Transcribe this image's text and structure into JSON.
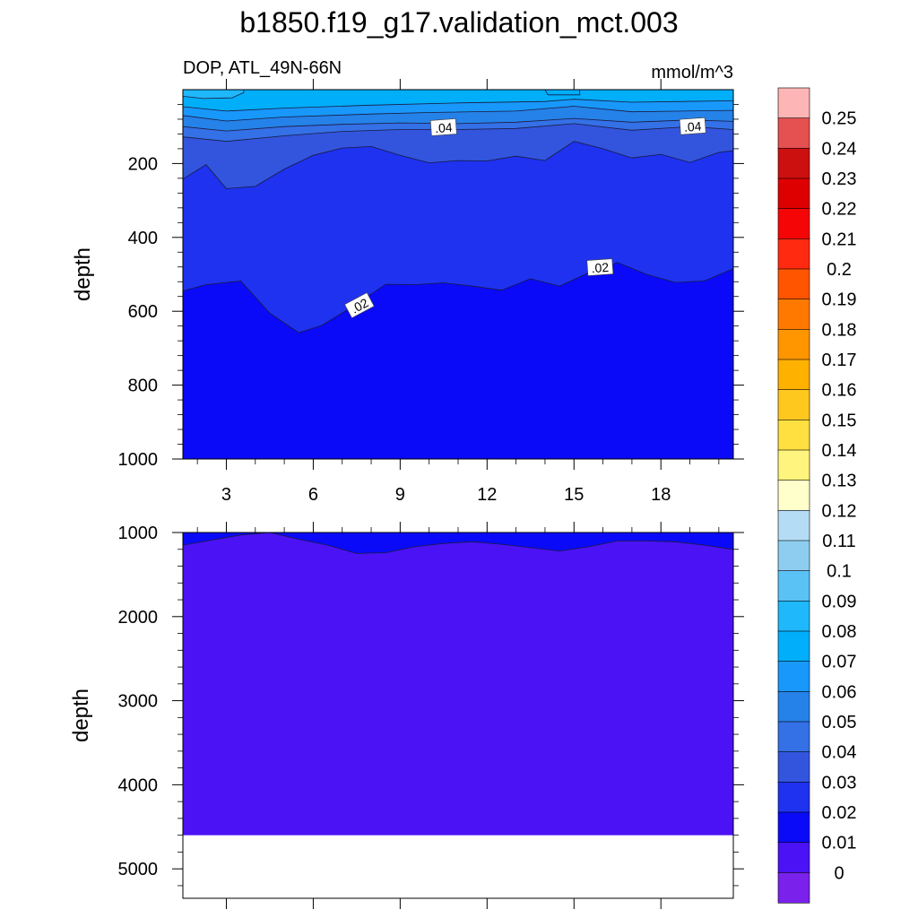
{
  "title": "b1850.f19_g17.validation_mct.003",
  "chart_data": {
    "type": "contour",
    "variable_label": "DOP, ATL_49N-66N",
    "units": "mmol/m^3",
    "x_ticks": [
      "3",
      "6",
      "9",
      "12",
      "15",
      "18"
    ],
    "x_tick_values": [
      3,
      6,
      9,
      12,
      15,
      18
    ],
    "xlim": [
      1.5,
      20.5
    ],
    "upper_panel": {
      "ylabel": "depth",
      "ylim": [
        0,
        1000
      ],
      "y_ticks": [
        "200",
        "400",
        "600",
        "800",
        "1000"
      ],
      "y_tick_values": [
        200,
        400,
        600,
        800,
        1000
      ],
      "contour_labels": [
        {
          "text": ".04",
          "x": 10.5,
          "depth": 103
        },
        {
          "text": ".04",
          "x": 19.1,
          "depth": 100
        },
        {
          "text": ".02",
          "x": 7.6,
          "depth": 585
        },
        {
          "text": ".02",
          "x": 15.9,
          "depth": 482
        }
      ]
    },
    "lower_panel": {
      "ylabel": "depth",
      "ylim": [
        1000,
        5350
      ],
      "y_ticks": [
        "1000",
        "2000",
        "3000",
        "4000",
        "5000"
      ],
      "y_tick_values": [
        1000,
        2000,
        3000,
        4000,
        5000
      ],
      "data_bottom_depth": 4600
    },
    "colorbar": {
      "labels": [
        "0.25",
        "0.24",
        "0.23",
        "0.22",
        "0.21",
        "0.2",
        "0.19",
        "0.18",
        "0.17",
        "0.16",
        "0.15",
        "0.14",
        "0.13",
        "0.12",
        "0.11",
        "0.1",
        "0.09",
        "0.08",
        "0.07",
        "0.06",
        "0.05",
        "0.04",
        "0.03",
        "0.02",
        "0.01",
        "0"
      ],
      "colors": [
        "#FDB5B5",
        "#E55050",
        "#CC1010",
        "#DE0000",
        "#F50505",
        "#FF2A0F",
        "#FF5500",
        "#FF7900",
        "#FF9600",
        "#FFB100",
        "#FFC81F",
        "#FFE040",
        "#FFF47D",
        "#FFFFCC",
        "#B4DCF5",
        "#8ECDF0",
        "#5AC2F5",
        "#1FB8FA",
        "#00AEFA",
        "#1898FA",
        "#2582E8",
        "#3470E6",
        "#3355DD",
        "#1E32F0",
        "#0A0AF8",
        "#4A12F5",
        "#7A22EC"
      ]
    },
    "colors": {
      "band_0_01": "#4A12F5",
      "band_0_02": "#0A0AF8",
      "band_0_03": "#1E32F0",
      "band_0_04": "#3355DD",
      "band_0_05": "#3470E6",
      "band_0_06": "#2582E8",
      "band_0_07": "#1898FA",
      "band_0_08": "#00AEFA",
      "band_0_09": "#1FB8FA"
    }
  }
}
